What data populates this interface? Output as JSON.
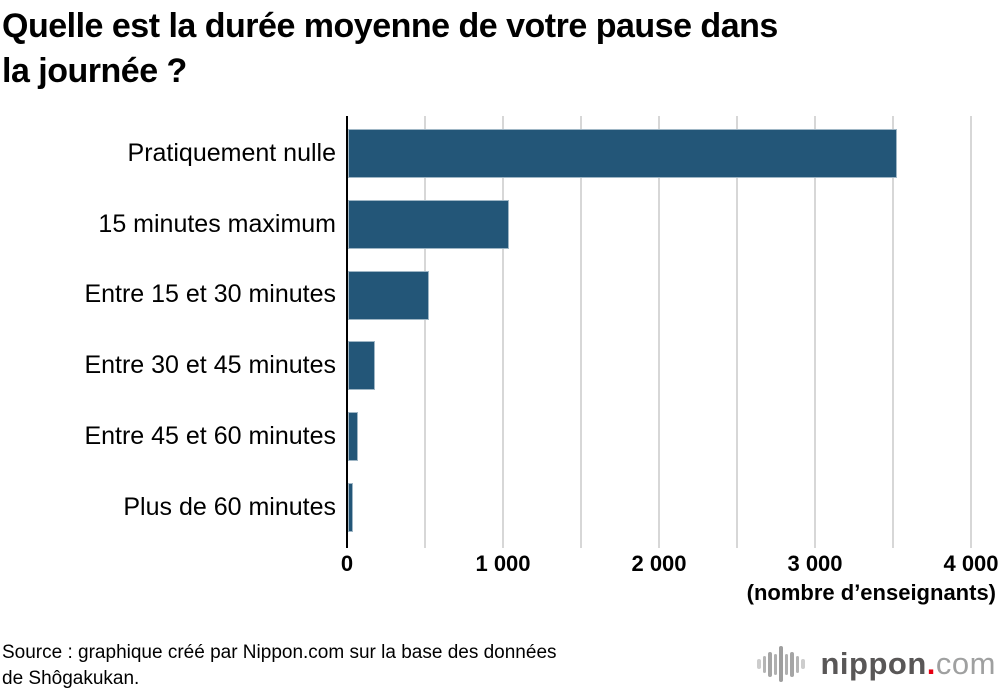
{
  "page": {
    "title_lines": [
      "Quelle est la durée moyenne de votre pause dans",
      "la journée ?"
    ]
  },
  "chart_data": {
    "type": "bar",
    "orientation": "horizontal",
    "title": "Quelle est la durée moyenne de votre pause dans la journée ?",
    "categories": [
      "Pratiquement nulle",
      "15 minutes maximum",
      "Entre 15 et 30 minutes",
      "Entre 30 et 45 minutes",
      "Entre 45 et 60 minutes",
      "Plus de 60 minutes"
    ],
    "values": [
      3520,
      1030,
      520,
      170,
      65,
      30
    ],
    "xlabel": "(nombre d’enseignants)",
    "ylabel": "",
    "xlim": [
      0,
      4000
    ],
    "x_ticks": [
      0,
      1000,
      2000,
      3000,
      4000
    ],
    "x_tick_labels": [
      "0",
      "1 000",
      "2 000",
      "3 000",
      "4 000"
    ],
    "minor_gridline_step": 500,
    "grid": true,
    "legend": false,
    "bar_color": "#235678",
    "gridline_color": "#d7d7d7",
    "axis_color": "#000000"
  },
  "source": {
    "lines": [
      "Source : graphique créé par Nippon.com sur la base des données",
      "de Shôgakukan."
    ]
  },
  "logo": {
    "brand": "nippon",
    "dot": ".",
    "tld": "com"
  }
}
